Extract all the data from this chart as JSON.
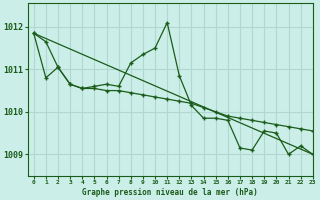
{
  "bg_color": "#cceee8",
  "grid_color": "#b0d8d0",
  "line_color": "#1a5c1a",
  "title": "Graphe pression niveau de la mer (hPa)",
  "xlim": [
    -0.5,
    23
  ],
  "ylim": [
    1008.5,
    1012.55
  ],
  "yticks": [
    1009,
    1010,
    1011,
    1012
  ],
  "xticks": [
    0,
    1,
    2,
    3,
    4,
    5,
    6,
    7,
    8,
    9,
    10,
    11,
    12,
    13,
    14,
    15,
    16,
    17,
    18,
    19,
    20,
    21,
    22,
    23
  ],
  "curve_jagged_x": [
    0,
    1,
    2,
    3,
    4,
    5,
    6,
    7,
    8,
    9,
    10,
    11,
    12,
    13,
    14,
    15,
    16,
    17,
    18,
    19,
    20,
    21,
    22,
    23
  ],
  "curve_jagged_y": [
    1011.85,
    1010.8,
    1011.05,
    1010.65,
    1010.55,
    1010.6,
    1010.65,
    1010.6,
    1011.15,
    1011.35,
    1011.5,
    1012.1,
    1010.85,
    1010.15,
    1009.85,
    1009.85,
    1009.8,
    1009.15,
    1009.1,
    1009.55,
    1009.5,
    1009.0,
    1009.2,
    1009.0
  ],
  "curve_smooth_x": [
    0,
    1,
    2,
    3,
    4,
    5,
    6,
    7,
    8,
    9,
    10,
    11,
    12,
    13,
    14,
    15,
    16,
    17,
    18,
    19,
    20,
    21,
    22,
    23
  ],
  "curve_smooth_y": [
    1011.85,
    1011.65,
    1011.05,
    1010.65,
    1010.55,
    1010.55,
    1010.5,
    1010.5,
    1010.45,
    1010.4,
    1010.35,
    1010.3,
    1010.25,
    1010.2,
    1010.1,
    1010.0,
    1009.9,
    1009.85,
    1009.8,
    1009.75,
    1009.7,
    1009.65,
    1009.6,
    1009.55
  ],
  "trend_x": [
    0,
    23
  ],
  "trend_y": [
    1011.85,
    1009.0
  ]
}
